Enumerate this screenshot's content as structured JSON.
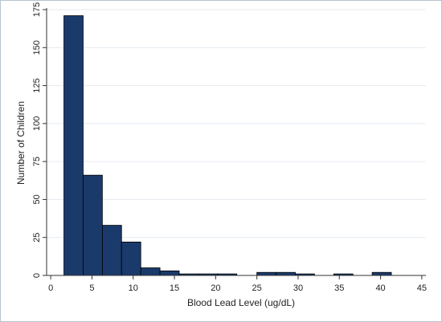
{
  "chart_data": {
    "type": "bar",
    "subtype": "histogram",
    "title": "",
    "xlabel": "Blood Lead Level (ug/dL)",
    "ylabel": "Number of Children",
    "xlim": [
      -0.5,
      45.5
    ],
    "ylim": [
      0,
      175
    ],
    "xticks": [
      0,
      5,
      10,
      15,
      20,
      25,
      30,
      35,
      40,
      45
    ],
    "yticks": [
      0,
      25,
      50,
      75,
      100,
      125,
      150,
      175
    ],
    "bin_width": 2.33,
    "bins": [
      {
        "x0": 1.6,
        "count": 171
      },
      {
        "x0": 3.93,
        "count": 66
      },
      {
        "x0": 6.26,
        "count": 33
      },
      {
        "x0": 8.59,
        "count": 22
      },
      {
        "x0": 10.92,
        "count": 5
      },
      {
        "x0": 13.25,
        "count": 3
      },
      {
        "x0": 15.58,
        "count": 1
      },
      {
        "x0": 17.91,
        "count": 1
      },
      {
        "x0": 20.24,
        "count": 1
      },
      {
        "x0": 25.0,
        "count": 2
      },
      {
        "x0": 27.33,
        "count": 2
      },
      {
        "x0": 29.66,
        "count": 1
      },
      {
        "x0": 34.32,
        "count": 1
      },
      {
        "x0": 38.98,
        "count": 2
      }
    ],
    "bar_color": "#1a3a6b",
    "bar_edge_color": "#000000",
    "grid": true,
    "grid_color": "#e4eaf0",
    "legend": "none"
  }
}
